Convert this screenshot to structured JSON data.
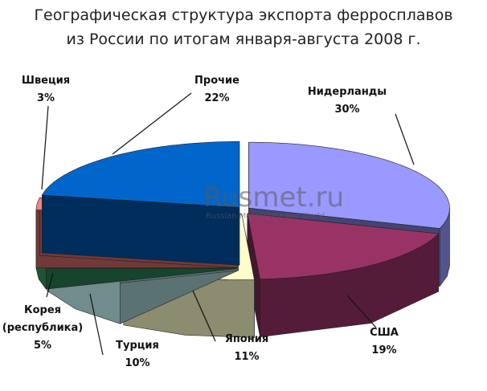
{
  "chart_data": {
    "type": "pie",
    "title": [
      "Географическая структура экспорта ферросплавов",
      "из России по итогам января-августа 2008 г."
    ],
    "categories": [
      "Нидерланды",
      "США",
      "Япония",
      "Турция",
      "Корея (республика)",
      "Швеция",
      "Прочие"
    ],
    "values": [
      30,
      19,
      11,
      10,
      5,
      3,
      22
    ],
    "value_labels": [
      "30%",
      "19%",
      "11%",
      "10%",
      "5%",
      "3%",
      "22%"
    ],
    "colors": [
      "#9999ff",
      "#993366",
      "#ffffcc",
      "#ccffff",
      "#339966",
      "#ff8080",
      "#0066cc"
    ],
    "watermark": [
      "Rusmet.ru",
      "Russian Metallurgy and World"
    ]
  }
}
